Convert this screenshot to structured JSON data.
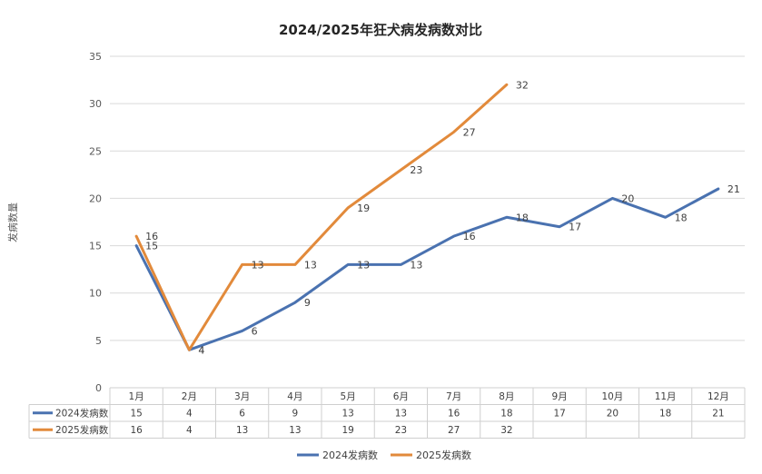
{
  "chart_data": {
    "type": "line",
    "title": "2024/2025年狂犬病发病数对比",
    "ylabel": "发病数量",
    "xlabel": "",
    "ylim": [
      0,
      35
    ],
    "yticks": [
      0,
      5,
      10,
      15,
      20,
      25,
      30,
      35
    ],
    "grid": true,
    "legend_position": "bottom",
    "categories": [
      "1月",
      "2月",
      "3月",
      "4月",
      "5月",
      "6月",
      "7月",
      "8月",
      "9月",
      "10月",
      "11月",
      "12月"
    ],
    "series": [
      {
        "name": "2024发病数",
        "color": "#4a72b0",
        "values": [
          15,
          4,
          6,
          9,
          13,
          13,
          16,
          18,
          17,
          20,
          18,
          21
        ]
      },
      {
        "name": "2025发病数",
        "color": "#e28a3b",
        "values": [
          16,
          4,
          13,
          13,
          19,
          23,
          27,
          32,
          null,
          null,
          null,
          null
        ]
      }
    ]
  }
}
